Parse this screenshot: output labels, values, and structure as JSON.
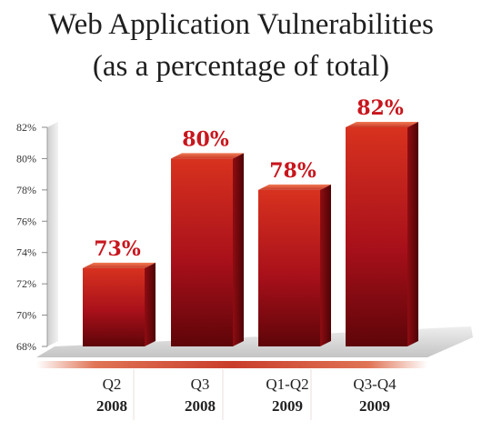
{
  "chart_data": {
    "type": "bar",
    "title": "Web Application Vulnerabilities",
    "subtitle": "(as a percentage of total)",
    "categories": [
      {
        "line1": "Q2",
        "line2": "2008"
      },
      {
        "line1": "Q3",
        "line2": "2008"
      },
      {
        "line1": "Q1-Q2",
        "line2": "2009"
      },
      {
        "line1": "Q3-Q4",
        "line2": "2009"
      }
    ],
    "values": [
      73,
      80,
      78,
      82
    ],
    "value_labels": [
      "73%",
      "80%",
      "78%",
      "82%"
    ],
    "ylim": [
      68,
      82
    ],
    "y_ticks": [
      "68%",
      "70%",
      "72%",
      "74%",
      "76%",
      "78%",
      "80%",
      "82%"
    ],
    "ytick_values": [
      68,
      70,
      72,
      74,
      76,
      78,
      80,
      82
    ],
    "xlabel": "",
    "ylabel": "",
    "grid": false,
    "legend": "none",
    "colors": {
      "bar_front": "#b3131a",
      "bar_top": "#d94a30",
      "bar_side": "#7a0a10",
      "label": "#c8161d",
      "floor": "#d9d9d9",
      "baseline_band": "#c9442f"
    }
  }
}
